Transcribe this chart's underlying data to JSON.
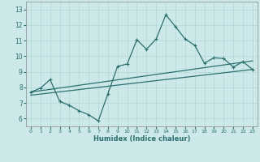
{
  "title": "",
  "xlabel": "Humidex (Indice chaleur)",
  "ylabel": "",
  "background_color": "#cce8e8",
  "line_color": "#2b7070",
  "xlim": [
    -0.5,
    23.5
  ],
  "ylim": [
    5.5,
    13.5
  ],
  "yticks": [
    6,
    7,
    8,
    9,
    10,
    11,
    12,
    13
  ],
  "xticks": [
    0,
    1,
    2,
    3,
    4,
    5,
    6,
    7,
    8,
    9,
    10,
    11,
    12,
    13,
    14,
    15,
    16,
    17,
    18,
    19,
    20,
    21,
    22,
    23
  ],
  "main_x": [
    0,
    1,
    2,
    3,
    4,
    5,
    6,
    7,
    8,
    9,
    10,
    11,
    12,
    13,
    14,
    15,
    16,
    17,
    18,
    19,
    20,
    21,
    22,
    23
  ],
  "main_y": [
    7.7,
    7.95,
    8.5,
    7.1,
    6.85,
    6.5,
    6.25,
    5.85,
    7.6,
    9.35,
    9.5,
    11.05,
    10.45,
    11.1,
    12.65,
    11.9,
    11.1,
    10.7,
    9.55,
    9.9,
    9.85,
    9.3,
    9.65,
    9.15
  ],
  "trend1_x": [
    0,
    23
  ],
  "trend1_y": [
    7.7,
    9.7
  ],
  "trend2_x": [
    0,
    23
  ],
  "trend2_y": [
    7.5,
    9.15
  ]
}
